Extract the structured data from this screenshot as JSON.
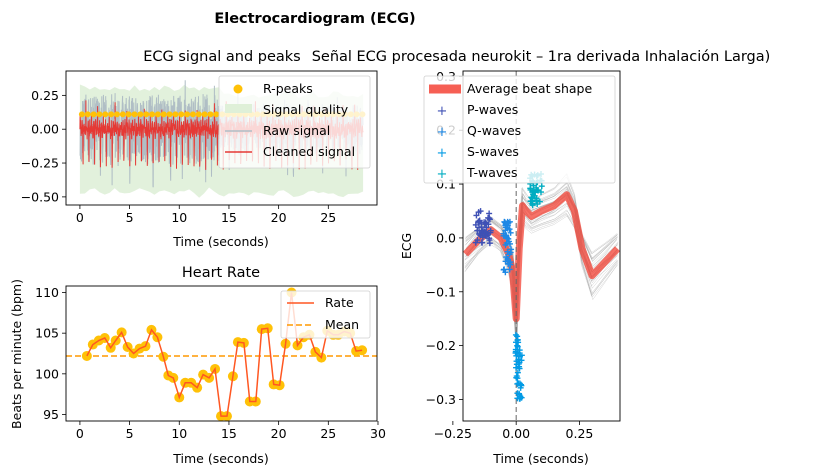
{
  "figure": {
    "suptitle": "Electrocardiogram (ECG)"
  },
  "chart_data": [
    {
      "id": "signal",
      "type": "line",
      "title": "ECG signal and peaks",
      "xlabel": "Time (seconds)",
      "ylabel": "",
      "xlim": [
        -1.4,
        29.9
      ],
      "ylim": [
        -0.56,
        0.43
      ],
      "xticks": [
        "0",
        "5",
        "10",
        "15",
        "20",
        "25"
      ],
      "xtick_values": [
        0,
        5,
        10,
        15,
        20,
        25
      ],
      "yticks": [
        "−0.50",
        "−0.25",
        "0.00",
        "0.25"
      ],
      "ytick_values": [
        -0.5,
        -0.25,
        0,
        0.25
      ],
      "legend": [
        "R-peaks",
        "Signal quality",
        "Raw signal",
        "Cleaned signal"
      ],
      "legend_position": "upper right",
      "duration_s": 28.5,
      "beats_per_minute": 102,
      "colors": {
        "peaks": "#FFC107",
        "quality": "#DFF0D8",
        "raw": "#B0BEC5",
        "clean": "#E53935"
      }
    },
    {
      "id": "rate",
      "type": "line",
      "title": "Heart Rate",
      "xlabel": "Time (seconds)",
      "ylabel": "Beats per minute (bpm)",
      "xlim": [
        -1.4,
        29.9
      ],
      "ylim": [
        94.2,
        110.8
      ],
      "xticks": [
        "0",
        "5",
        "10",
        "15",
        "20",
        "25",
        "30"
      ],
      "xtick_values": [
        0,
        5,
        10,
        15,
        20,
        25,
        30
      ],
      "yticks": [
        "95",
        "100",
        "105",
        "110"
      ],
      "ytick_values": [
        95,
        100,
        105,
        110
      ],
      "legend": [
        "Rate",
        "Mean"
      ],
      "legend_position": "upper right",
      "mean": 102.2,
      "x": [
        0.7,
        1.3,
        1.9,
        2.5,
        3.1,
        3.6,
        4.2,
        4.8,
        5.4,
        6.0,
        6.6,
        7.2,
        7.8,
        8.4,
        8.9,
        9.4,
        10.0,
        10.6,
        11.2,
        11.8,
        12.4,
        13.0,
        13.6,
        14.2,
        14.8,
        15.4,
        15.9,
        16.5,
        17.1,
        17.7,
        18.3,
        18.9,
        19.5,
        20.1,
        20.7,
        21.3,
        21.9,
        22.5,
        23.1,
        23.7,
        24.3,
        24.9,
        25.5,
        26.0,
        26.6,
        27.2,
        27.8,
        28.4
      ],
      "values": [
        102.2,
        103.6,
        104.1,
        104.4,
        103.2,
        104.1,
        105.1,
        103.3,
        102.5,
        103.1,
        103.4,
        105.4,
        104.5,
        102.1,
        99.8,
        99.5,
        97.1,
        98.9,
        98.9,
        98.3,
        99.9,
        99.5,
        100.6,
        94.8,
        94.8,
        99.7,
        103.9,
        103.8,
        96.6,
        96.6,
        105.5,
        105.6,
        98.7,
        98.6,
        103.7,
        110.0,
        103.5,
        104.5,
        104.8,
        102.7,
        102.0,
        105.3,
        104.8,
        104.8,
        105.2,
        105.0,
        102.8,
        102.9
      ],
      "colors": {
        "rate": "#FF5722",
        "points": "#FFC107",
        "mean": "#FF9800"
      }
    },
    {
      "id": "beats",
      "type": "line",
      "title": "Señal ECG procesada neurokit – 1ra derivada Inhalación Larga)",
      "xlabel": "Time (seconds)",
      "ylabel": "ECG",
      "xlim": [
        -0.21,
        0.41
      ],
      "ylim": [
        -0.34,
        0.31
      ],
      "xticks": [
        "−0.25",
        "0.00",
        "0.25"
      ],
      "xtick_values": [
        -0.25,
        0,
        0.25
      ],
      "yticks": [
        "−0.3",
        "−0.2",
        "−0.1",
        "0.0",
        "0.1",
        "0.2",
        "0.3"
      ],
      "ytick_values": [
        -0.3,
        -0.2,
        -0.1,
        0,
        0.1,
        0.2,
        0.3
      ],
      "legend": [
        "Average beat shape",
        "P-waves",
        "Q-waves",
        "S-waves",
        "T-waves"
      ],
      "legend_position": "upper left",
      "average_x": [
        -0.2,
        -0.15,
        -0.1,
        -0.06,
        -0.03,
        -0.015,
        0,
        0.012,
        0.025,
        0.04,
        0.06,
        0.1,
        0.15,
        0.2,
        0.23,
        0.26,
        0.3,
        0.35,
        0.4
      ],
      "average_y": [
        -0.03,
        -0.005,
        0.015,
        0.0,
        -0.03,
        -0.06,
        -0.15,
        -0.02,
        0.06,
        0.05,
        0.04,
        0.05,
        0.06,
        0.08,
        0.05,
        -0.02,
        -0.07,
        -0.045,
        -0.02
      ],
      "colors": {
        "average": "#F44336",
        "P": "#3F51B5",
        "Q": "#1E88E5",
        "S": "#039BE5",
        "T": "#00ACC1",
        "traces": "#9E9E9E"
      }
    }
  ]
}
